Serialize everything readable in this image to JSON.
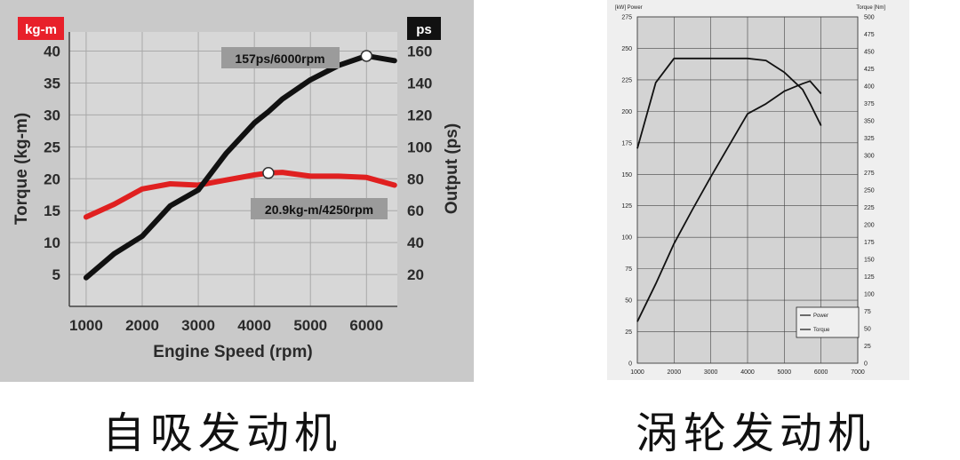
{
  "chart_data": [
    {
      "type": "line",
      "x": [
        1000,
        1500,
        2000,
        2500,
        3000,
        3500,
        4000,
        4250,
        4500,
        5000,
        5500,
        6000,
        6500
      ],
      "xlabel": "Engine Speed (rpm)",
      "xticks": [
        1000,
        2000,
        3000,
        4000,
        5000,
        6000
      ],
      "xlim": [
        700,
        6550
      ],
      "left_axis": {
        "label": "Torque (kg-m)",
        "unit": "kg-m",
        "ticks": [
          5,
          10,
          15,
          20,
          25,
          30,
          35,
          40
        ],
        "lim": [
          0,
          43
        ]
      },
      "right_axis": {
        "label": "Output (ps)",
        "unit": "ps",
        "ticks": [
          20,
          40,
          60,
          80,
          100,
          120,
          140,
          160
        ],
        "lim": [
          0,
          172
        ]
      },
      "grid": true,
      "series": [
        {
          "axis": "left",
          "color": "#e02020",
          "values": [
            14,
            16,
            18.4,
            19.2,
            19,
            19.8,
            20.6,
            20.9,
            21,
            20.4,
            20.4,
            20.2,
            19
          ]
        },
        {
          "axis": "right",
          "color": "#111111",
          "values": [
            18,
            33,
            44,
            63,
            73,
            96,
            115,
            122,
            130,
            142,
            151,
            157,
            154
          ]
        }
      ],
      "annotations": [
        {
          "text": "157ps/6000rpm",
          "x": 6000,
          "y": 157,
          "axis": "right"
        },
        {
          "text": "20.9kg-m/4250rpm",
          "x": 4250,
          "y": 20.9,
          "axis": "left"
        }
      ]
    },
    {
      "type": "line",
      "x": [
        1000,
        1500,
        2000,
        2500,
        3000,
        3500,
        4000,
        4500,
        5000,
        5500,
        5700,
        6000
      ],
      "xticks": [
        1000,
        2000,
        3000,
        4000,
        5000,
        6000,
        7000
      ],
      "xlim": [
        1000,
        7000
      ],
      "left_axis": {
        "label": "[kW] Power",
        "ticks": [
          0,
          25,
          50,
          75,
          100,
          125,
          150,
          175,
          200,
          225,
          250,
          275
        ],
        "lim": [
          0,
          275
        ]
      },
      "right_axis": {
        "label": "Torque [Nm]",
        "ticks": [
          0,
          25,
          50,
          75,
          100,
          125,
          150,
          175,
          200,
          225,
          250,
          275,
          300,
          325,
          350,
          375,
          400,
          425,
          450,
          475,
          500
        ],
        "lim": [
          0,
          500
        ]
      },
      "grid": true,
      "legend": {
        "position": "bottom-right",
        "entries": [
          "Power",
          "Torque"
        ]
      },
      "series": [
        {
          "name": "Power",
          "axis": "left",
          "color": "#111111",
          "values": [
            33,
            63,
            95,
            122,
            148,
            173,
            198,
            206,
            216,
            222,
            224,
            214
          ]
        },
        {
          "name": "Torque",
          "axis": "right",
          "color": "#111111",
          "values": [
            310,
            405,
            440,
            440,
            440,
            440,
            440,
            437,
            420,
            395,
            375,
            343
          ]
        }
      ]
    }
  ],
  "left_chart": {
    "unit_badge_left": "kg-m",
    "unit_badge_right": "ps",
    "ylabel_left": "Torque (kg-m)",
    "ylabel_right": "Output (ps)",
    "xlabel": "Engine Speed (rpm)",
    "peak_power_label": "157ps/6000rpm",
    "peak_torque_label": "20.9kg-m/4250rpm"
  },
  "right_chart": {
    "left_axis_title": "[kW]  Power",
    "right_axis_title": "Torque [Nm]",
    "legend_power": "Power",
    "legend_torque": "Torque"
  },
  "captions": {
    "left": "自吸发动机",
    "right": "涡轮发动机"
  }
}
